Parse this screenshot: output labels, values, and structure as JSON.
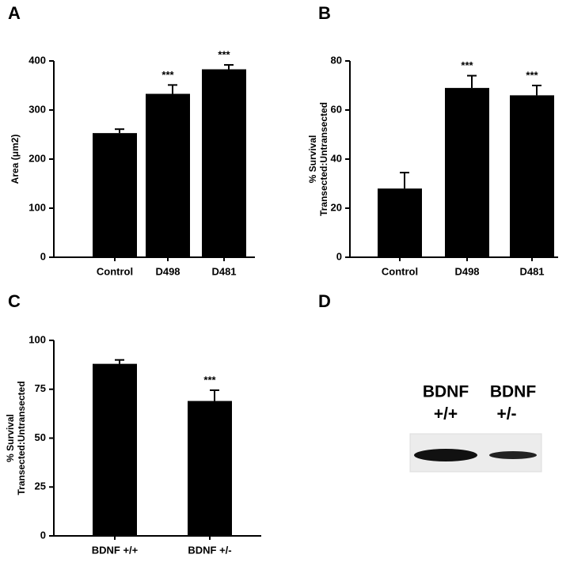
{
  "chart_data": [
    {
      "type": "bar",
      "panel": "A",
      "ylabel": [
        "Area (μm2)"
      ],
      "categories": [
        "Control",
        "D498",
        "D481"
      ],
      "values": [
        253,
        333,
        383
      ],
      "errors": [
        8,
        18,
        9
      ],
      "annotations": [
        null,
        "***",
        "***"
      ],
      "color": "#000000",
      "ylim": [
        0,
        400
      ],
      "yticks": [
        0,
        100,
        200,
        300,
        400
      ]
    },
    {
      "type": "bar",
      "panel": "B",
      "ylabel": [
        "% Survival",
        "Transected:Untransected"
      ],
      "categories": [
        "Control",
        "D498",
        "D481"
      ],
      "values": [
        28,
        69,
        66
      ],
      "errors": [
        6.5,
        5,
        4
      ],
      "annotations": [
        null,
        "***",
        "***"
      ],
      "color": "#000000",
      "ylim": [
        0,
        80
      ],
      "yticks": [
        0,
        20,
        40,
        60,
        80
      ]
    },
    {
      "type": "bar",
      "panel": "C",
      "ylabel": [
        "% Survival",
        "Transected:Untransected"
      ],
      "categories": [
        "BDNF +/+",
        "BDNF +/-"
      ],
      "values": [
        88,
        69
      ],
      "errors": [
        2,
        5.5
      ],
      "annotations": [
        null,
        "***"
      ],
      "color": "#000000",
      "ylim": [
        0,
        100
      ],
      "yticks": [
        0,
        25,
        50,
        75,
        100
      ]
    }
  ],
  "blot": {
    "panel": "D",
    "lanes": [
      {
        "name": "BDNF",
        "genotype": "+/+"
      },
      {
        "name": "BDNF",
        "genotype": "+/-"
      }
    ]
  }
}
